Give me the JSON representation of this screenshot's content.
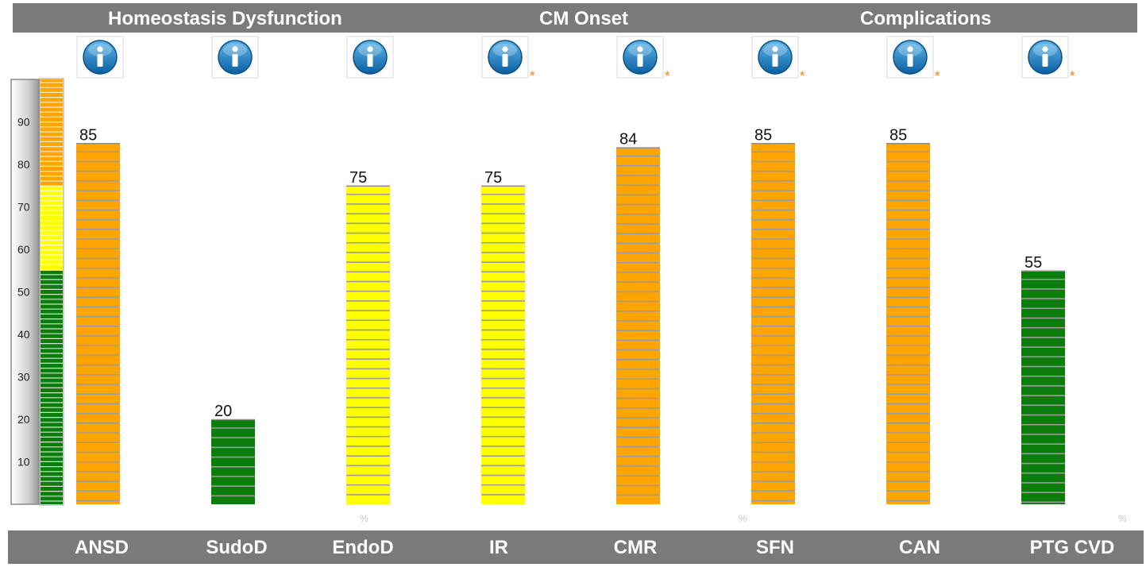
{
  "header": {
    "sections": [
      "Homeostasis Dysfunction",
      "CM Onset",
      "Complications"
    ]
  },
  "chart_data": {
    "type": "bar",
    "categories": [
      "ANSD",
      "SudoD",
      "EndoD",
      "IR",
      "CMR",
      "SFN",
      "CAN",
      "PTG CVD"
    ],
    "values": [
      85,
      20,
      75,
      75,
      84,
      85,
      85,
      55
    ],
    "value_labels": [
      "85",
      "20",
      "75",
      "75",
      "84",
      "85",
      "85",
      "55"
    ],
    "asterisk": [
      false,
      false,
      false,
      true,
      true,
      true,
      true,
      true
    ],
    "asterisk_symbol": "*",
    "ylim": [
      0,
      100
    ],
    "y_ticks": [
      10,
      20,
      30,
      40,
      50,
      60,
      70,
      80,
      90
    ],
    "percent_marker": "%",
    "thresholds": {
      "green_max": 55,
      "yellow_max": 75
    },
    "colors": {
      "green": "#0a7d0a",
      "yellow": "#ffff00",
      "orange": "#ffa500",
      "stripe": "#9c9c9c"
    },
    "info_icon": "info-icon",
    "grid": false,
    "legend": "none"
  }
}
